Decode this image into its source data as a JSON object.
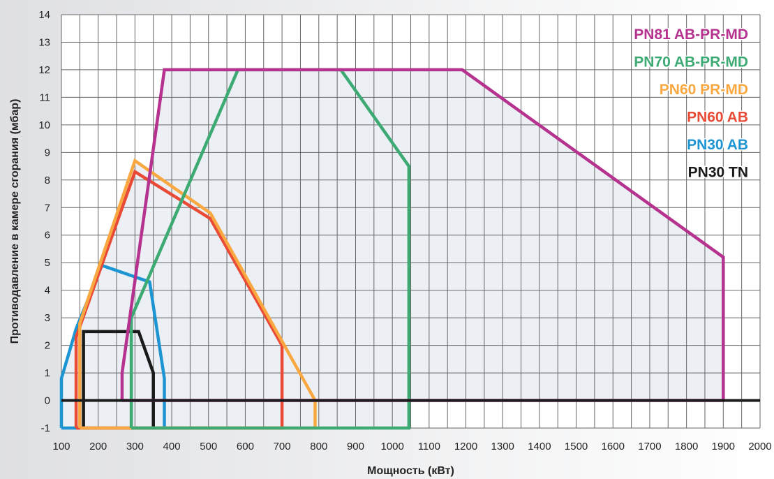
{
  "chart_data": {
    "type": "line",
    "title": "",
    "xlabel": "Мощность  (кВт)",
    "ylabel": "Противодавление в камере сгорания (мбар)",
    "xlim": [
      100,
      2000
    ],
    "ylim": [
      -1,
      14
    ],
    "xticks": [
      "100",
      "200",
      "300",
      "400",
      "500",
      "600",
      "700",
      "800",
      "900",
      "1000",
      "1100",
      "1200",
      "1300",
      "1400",
      "1500",
      "1600",
      "1700",
      "1800",
      "1900",
      "2000"
    ],
    "yticks": [
      "-1",
      "0",
      "1",
      "2",
      "3",
      "4",
      "5",
      "6",
      "7",
      "8",
      "9",
      "10",
      "11",
      "12",
      "13",
      "14"
    ],
    "grid": true,
    "legend_position": "top-right",
    "series": [
      {
        "name": "PN81 AB-PR-MD",
        "color": "#b5338f",
        "points": [
          [
            265,
            0
          ],
          [
            265,
            1
          ],
          [
            380,
            12
          ],
          [
            1190,
            12
          ],
          [
            1900,
            5.2
          ],
          [
            1900,
            0
          ],
          [
            265,
            0
          ]
        ]
      },
      {
        "name": "PN70 AB-PR-MD",
        "color": "#3daa74",
        "points": [
          [
            290,
            -1
          ],
          [
            290,
            3
          ],
          [
            580,
            12
          ],
          [
            860,
            12
          ],
          [
            1045,
            8.5
          ],
          [
            1045,
            -1
          ],
          [
            290,
            -1
          ]
        ]
      },
      {
        "name": "PN60 PR-MD",
        "color": "#f9a841",
        "points": [
          [
            150,
            -1
          ],
          [
            150,
            2.8
          ],
          [
            300,
            8.7
          ],
          [
            505,
            6.8
          ],
          [
            790,
            0
          ],
          [
            790,
            -1
          ],
          [
            150,
            -1
          ]
        ]
      },
      {
        "name": "PN60 AB",
        "color": "#e94a36",
        "points": [
          [
            140,
            -1
          ],
          [
            140,
            2.3
          ],
          [
            300,
            8.3
          ],
          [
            505,
            6.6
          ],
          [
            700,
            2.0
          ],
          [
            700,
            -1
          ],
          [
            140,
            -1
          ]
        ]
      },
      {
        "name": "PN30 AB",
        "color": "#1e95d3",
        "points": [
          [
            100,
            -1
          ],
          [
            100,
            0.8
          ],
          [
            140,
            2.6
          ],
          [
            210,
            4.9
          ],
          [
            340,
            4.3
          ],
          [
            380,
            0.8
          ],
          [
            380,
            -1
          ],
          [
            100,
            -1
          ]
        ]
      },
      {
        "name": "PN30 TN",
        "color": "#1a1a1a",
        "points": [
          [
            160,
            -1
          ],
          [
            160,
            2.5
          ],
          [
            310,
            2.5
          ],
          [
            350,
            1.0
          ],
          [
            350,
            -1
          ]
        ]
      }
    ],
    "baseline": {
      "y": 0,
      "color": "#1a1a1a"
    },
    "colors": {
      "plot_background": "#ffffff",
      "outer_background": "#e8e9eb",
      "grid_line": "#666666",
      "region_fill": "#eceff4"
    }
  }
}
